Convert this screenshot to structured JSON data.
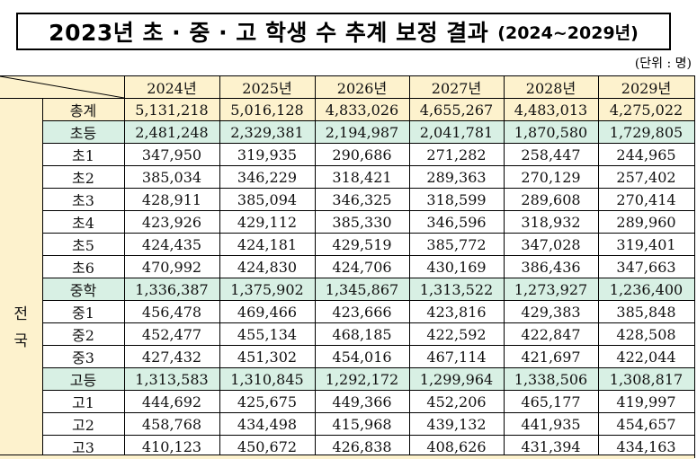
{
  "title": {
    "main": "2023년 초 · 중 · 고 학생 수 추계 보정 결과",
    "sub": "(2024~2029년)"
  },
  "unit_label": "(단위 : 명)",
  "table": {
    "region_label": "전\n국",
    "region_chars": [
      "전",
      "국"
    ],
    "columns": [
      "2024년",
      "2025년",
      "2026년",
      "2027년",
      "2028년",
      "2029년"
    ],
    "rows": [
      {
        "label": "총계",
        "type": "total",
        "values": [
          "5,131,218",
          "5,016,128",
          "4,833,026",
          "4,655,267",
          "4,483,013",
          "4,275,022"
        ]
      },
      {
        "label": "초등",
        "type": "sub",
        "values": [
          "2,481,248",
          "2,329,381",
          "2,194,987",
          "2,041,781",
          "1,870,580",
          "1,729,805"
        ]
      },
      {
        "label": "초1",
        "type": "norm",
        "values": [
          "347,950",
          "319,935",
          "290,686",
          "271,282",
          "258,447",
          "244,965"
        ]
      },
      {
        "label": "초2",
        "type": "norm",
        "values": [
          "385,034",
          "346,229",
          "318,421",
          "289,363",
          "270,129",
          "257,402"
        ]
      },
      {
        "label": "초3",
        "type": "norm",
        "values": [
          "428,911",
          "385,094",
          "346,325",
          "318,599",
          "289,608",
          "270,414"
        ]
      },
      {
        "label": "초4",
        "type": "norm",
        "values": [
          "423,926",
          "429,112",
          "385,330",
          "346,596",
          "318,932",
          "289,960"
        ]
      },
      {
        "label": "초5",
        "type": "norm",
        "values": [
          "424,435",
          "424,181",
          "429,519",
          "385,772",
          "347,028",
          "319,401"
        ]
      },
      {
        "label": "초6",
        "type": "norm",
        "values": [
          "470,992",
          "424,830",
          "424,706",
          "430,169",
          "386,436",
          "347,663"
        ]
      },
      {
        "label": "중학",
        "type": "sub",
        "values": [
          "1,336,387",
          "1,375,902",
          "1,345,867",
          "1,313,522",
          "1,273,927",
          "1,236,400"
        ]
      },
      {
        "label": "중1",
        "type": "norm",
        "values": [
          "456,478",
          "469,466",
          "423,666",
          "423,816",
          "429,383",
          "385,848"
        ]
      },
      {
        "label": "중2",
        "type": "norm",
        "values": [
          "452,477",
          "455,134",
          "468,185",
          "422,592",
          "422,847",
          "428,508"
        ]
      },
      {
        "label": "중3",
        "type": "norm",
        "values": [
          "427,432",
          "451,302",
          "454,016",
          "467,114",
          "421,697",
          "422,044"
        ]
      },
      {
        "label": "고등",
        "type": "sub",
        "values": [
          "1,313,583",
          "1,310,845",
          "1,292,172",
          "1,299,964",
          "1,338,506",
          "1,308,817"
        ]
      },
      {
        "label": "고1",
        "type": "norm",
        "values": [
          "444,692",
          "425,675",
          "449,366",
          "452,206",
          "465,177",
          "419,997"
        ]
      },
      {
        "label": "고2",
        "type": "norm",
        "values": [
          "458,768",
          "434,498",
          "415,968",
          "439,132",
          "441,935",
          "454,657"
        ]
      },
      {
        "label": "고3",
        "type": "norm",
        "values": [
          "410,123",
          "450,672",
          "426,838",
          "408,626",
          "431,394",
          "434,163"
        ]
      }
    ]
  },
  "colors": {
    "header_bg": "#fdf2cd",
    "subtotal_bg": "#d8f0e4",
    "border": "#000000"
  }
}
